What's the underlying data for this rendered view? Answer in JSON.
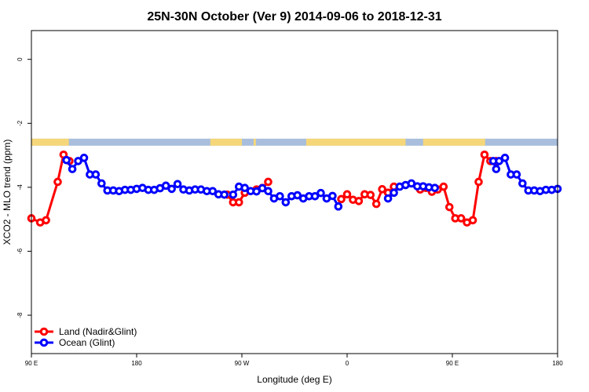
{
  "chart_data": {
    "type": "line",
    "title": "25N-30N October (Ver 9)   2014-09-06 to 2018-12-31",
    "xlabel": "Longitude (deg E)",
    "ylabel": "XCO2 - MLO trend (ppm)",
    "xlim": [
      90,
      540
    ],
    "ylim": [
      -9.2,
      0.9
    ],
    "x_ticks": [
      {
        "value": 90,
        "label": "90 E"
      },
      {
        "value": 180,
        "label": "180"
      },
      {
        "value": 270,
        "label": "90 W"
      },
      {
        "value": 360,
        "label": "0"
      },
      {
        "value": 450,
        "label": "90 E"
      },
      {
        "value": 540,
        "label": "180"
      }
    ],
    "y_ticks": [
      {
        "value": 0,
        "label": "0"
      },
      {
        "value": -2,
        "label": "-2"
      },
      {
        "value": -4,
        "label": "-4"
      },
      {
        "value": -6,
        "label": "-6"
      },
      {
        "value": -8,
        "label": "-8"
      }
    ],
    "legend_position": "bottom-left",
    "colors": {
      "land": "#ff0000",
      "ocean": "#0000ff",
      "land_band": "#f5d77a",
      "ocean_band": "#a8bedc"
    },
    "land_band": {
      "y_top": -2.48,
      "y_bottom": -2.7,
      "land_segments": [
        [
          90,
          122
        ],
        [
          243,
          270
        ],
        [
          280,
          282
        ],
        [
          325,
          410
        ],
        [
          425,
          478
        ]
      ]
    },
    "series": [
      {
        "name": "Land (Nadir&Glint)",
        "color": "#ff0000",
        "segments": [
          {
            "x": [
              90,
              97.5,
              102.5,
              112.5,
              117.5,
              122.5
            ],
            "y": [
              -4.97,
              -5.1,
              -5.03,
              -3.83,
              -2.98,
              -3.18
            ]
          },
          {
            "x": [
              257.5,
              262.5,
              267.5,
              272.5
            ],
            "y": [
              -4.23,
              -4.47,
              -4.47,
              -4.17
            ]
          },
          {
            "x": [
              282.5,
              287.5,
              292.5
            ],
            "y": [
              -4.07,
              -4.02,
              -3.83
            ]
          },
          {
            "x": [
              355,
              360,
              365,
              370,
              375,
              380,
              385,
              390,
              395,
              400
            ],
            "y": [
              -4.37,
              -4.22,
              -4.39,
              -4.43,
              -4.22,
              -4.24,
              -4.52,
              -4.06,
              -4.17,
              -3.98
            ]
          },
          {
            "x": [
              422.5,
              427.5,
              432.5,
              437.5,
              442.5,
              447.5,
              452.5,
              457.5,
              462.5,
              467.5,
              472.5,
              477.5,
              482.5,
              487.5
            ],
            "y": [
              -4.07,
              -4.02,
              -4.14,
              -4.07,
              -3.98,
              -4.62,
              -4.97,
              -4.97,
              -5.1,
              -5.03,
              -3.83,
              -2.98,
              -3.18,
              -3.18
            ]
          }
        ]
      },
      {
        "name": "Ocean (Glint)",
        "color": "#0000ff",
        "segments": [
          {
            "x": [
              120,
              125,
              130,
              135,
              140,
              145,
              150,
              155,
              160,
              165,
              170,
              175,
              180,
              185,
              190,
              195,
              200,
              205,
              210,
              215,
              220,
              225,
              230,
              235,
              240,
              245,
              250,
              255
            ],
            "y": [
              -3.15,
              -3.43,
              -3.18,
              -3.08,
              -3.6,
              -3.6,
              -3.88,
              -4.1,
              -4.1,
              -4.12,
              -4.08,
              -4.08,
              -4.05,
              -4.02,
              -4.08,
              -4.08,
              -4.03,
              -3.95,
              -4.05,
              -3.9,
              -4.07,
              -4.1,
              -4.07,
              -4.07,
              -4.12,
              -4.12,
              -4.22,
              -4.23
            ]
          },
          {
            "x": [
              262.5,
              267.5,
              272.5,
              277.5,
              282.5,
              287.5,
              292.5,
              297.5,
              302.5,
              307.5,
              312.5,
              317.5,
              322.5,
              327.5,
              332.5,
              337.5,
              342.5,
              347.5,
              352.5
            ],
            "y": [
              -4.23,
              -3.98,
              -4.02,
              -4.12,
              -4.13,
              -4.03,
              -4.12,
              -4.35,
              -4.28,
              -4.47,
              -4.28,
              -4.25,
              -4.35,
              -4.28,
              -4.28,
              -4.18,
              -4.35,
              -4.27,
              -4.6
            ]
          },
          {
            "x": [
              395,
              400,
              405,
              410,
              415,
              420,
              425,
              430,
              435
            ],
            "y": [
              -4.35,
              -4.17,
              -3.98,
              -3.93,
              -3.88,
              -3.97,
              -3.97,
              -4.0,
              -4.02
            ]
          },
          {
            "x": [
              485,
              487.5,
              490,
              495,
              500,
              505,
              510,
              515,
              520,
              525,
              530,
              535,
              540
            ],
            "y": [
              -3.18,
              -3.43,
              -3.18,
              -3.08,
              -3.6,
              -3.6,
              -3.88,
              -4.1,
              -4.1,
              -4.12,
              -4.08,
              -4.08,
              -4.05
            ]
          }
        ]
      }
    ]
  }
}
